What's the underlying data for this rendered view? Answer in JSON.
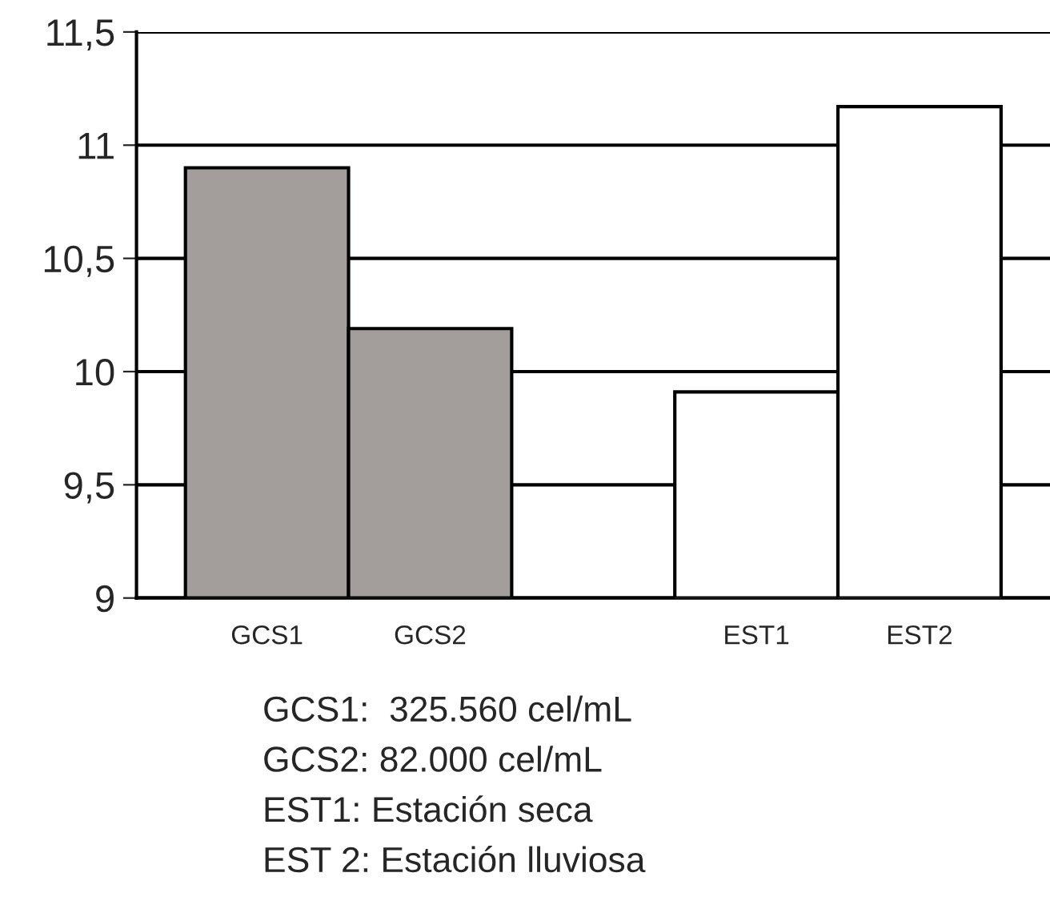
{
  "chart_data": {
    "type": "bar",
    "categories": [
      "GCS1",
      "GCS2",
      null,
      "EST1",
      "EST2"
    ],
    "values": [
      10.9,
      10.19,
      null,
      9.91,
      11.17
    ],
    "colors": [
      "#a39d9b",
      "#a39d9b",
      "#ffffff",
      "#ffffff",
      "#ffffff"
    ],
    "ylim": [
      9,
      11.5
    ],
    "yticks": [
      {
        "value": 9,
        "label": "9"
      },
      {
        "value": 9.5,
        "label": "9,5"
      },
      {
        "value": 10,
        "label": "10"
      },
      {
        "value": 10.5,
        "label": "10,5"
      },
      {
        "value": 11,
        "label": "11"
      },
      {
        "value": 11.5,
        "label": "11,5"
      }
    ],
    "grid": "y",
    "legend": false,
    "annotations": [
      "GCS1:  325.560 cel/mL",
      "GCS2: 82.000 cel/mL",
      "EST1: Estación seca",
      "EST 2: Estación lluviosa"
    ]
  }
}
